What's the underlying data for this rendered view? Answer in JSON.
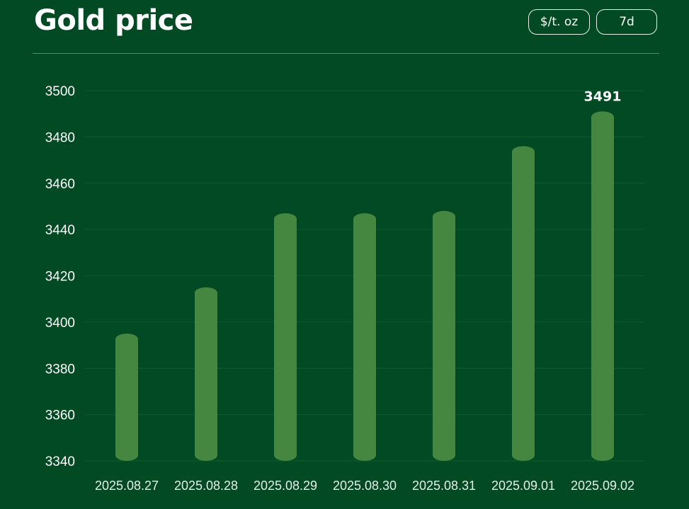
{
  "chart_data": {
    "type": "bar",
    "title": "Gold price",
    "categories": [
      "2025.08.27",
      "2025.08.28",
      "2025.08.29",
      "2025.08.30",
      "2025.08.31",
      "2025.09.01",
      "2025.09.02"
    ],
    "values": [
      3395,
      3415,
      3447,
      3447,
      3448,
      3476,
      3491
    ],
    "ylim": [
      3340,
      3500
    ],
    "yticks": [
      3340,
      3360,
      3380,
      3400,
      3420,
      3440,
      3460,
      3480,
      3500
    ],
    "data_labels": [
      {
        "index": 6,
        "text": "3491"
      }
    ],
    "xlabel": "",
    "ylabel": "",
    "grid": true,
    "legend": "none"
  },
  "controls": {
    "unit_label": "$/t. oz",
    "period_label": "7d"
  },
  "colors": {
    "background": "#024a23",
    "bar": "#458740",
    "text": "#ffffff"
  }
}
